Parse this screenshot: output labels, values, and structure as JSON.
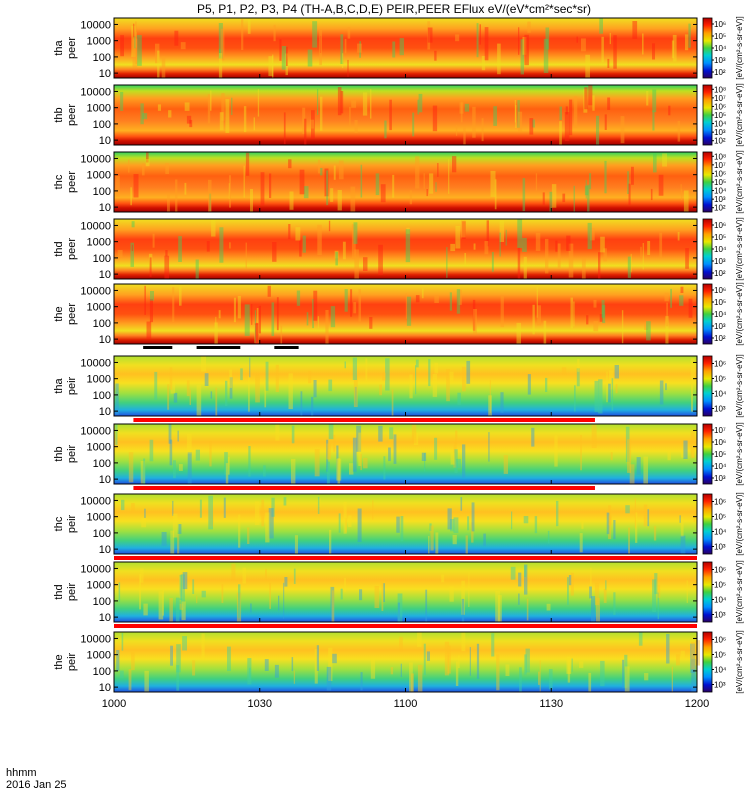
{
  "chart_data": {
    "type": "heatmap",
    "title": "P5, P1, P2, P3, P4 (TH-A,B,C,D,E) PEIR,PEER EFlux eV/(eV*cm²*sec*sr)",
    "time_axis": {
      "range": [
        "10:00",
        "12:00"
      ],
      "tick_labels": [
        "1000",
        "1030",
        "1100",
        "1130",
        "1200"
      ],
      "tick_minutes": [
        0,
        30,
        60,
        90,
        120
      ],
      "corner_label_top": "hhmm",
      "corner_label_bottom": "2016 Jan 25"
    },
    "y_ticks": [
      "10000",
      "1000",
      "100",
      "10"
    ],
    "y_tick_values": [
      10000,
      1000,
      100,
      10
    ],
    "y_range": [
      5,
      25000
    ],
    "y_scale": "log",
    "colorbar_label": "[eV/(cm²-s-sr-eV)]",
    "panels": [
      {
        "probe": "tha",
        "species": "peer",
        "cb_ticks": [
          "10⁶",
          "10⁵",
          "10⁴",
          "10³",
          "10²"
        ],
        "cb_exps": [
          6,
          5,
          4,
          3,
          2
        ],
        "cb_range": [
          1.5,
          6.5
        ],
        "gap_bar": "none"
      },
      {
        "probe": "thb",
        "species": "peer",
        "cb_ticks": [
          "10⁸",
          "10⁷",
          "10⁶",
          "10⁵",
          "10⁴",
          "10³",
          "10²"
        ],
        "cb_exps": [
          8,
          7,
          6,
          5,
          4,
          3,
          2
        ],
        "cb_range": [
          1.5,
          8.5
        ],
        "gap_bar": "none"
      },
      {
        "probe": "thc",
        "species": "peer",
        "cb_ticks": [
          "10⁸",
          "10⁷",
          "10⁶",
          "10⁵",
          "10⁴",
          "10³",
          "10²"
        ],
        "cb_exps": [
          8,
          7,
          6,
          5,
          4,
          3,
          2
        ],
        "cb_range": [
          1.5,
          8.5
        ],
        "gap_bar": "none"
      },
      {
        "probe": "thd",
        "species": "peer",
        "cb_ticks": [
          "10⁶",
          "10⁵",
          "10⁴",
          "10³",
          "10²"
        ],
        "cb_exps": [
          6,
          5,
          4,
          3,
          2
        ],
        "cb_range": [
          1.5,
          6.5
        ],
        "gap_bar": "none"
      },
      {
        "probe": "the",
        "species": "peer",
        "cb_ticks": [
          "10⁶",
          "10⁵",
          "10⁴",
          "10³",
          "10²"
        ],
        "cb_exps": [
          6,
          5,
          4,
          3,
          2
        ],
        "cb_range": [
          1.5,
          6.5
        ],
        "gap_bar": "segments"
      },
      {
        "probe": "tha",
        "species": "peir",
        "cb_ticks": [
          "10⁶",
          "10⁵",
          "10⁴",
          "10³"
        ],
        "cb_exps": [
          6,
          5,
          4,
          3
        ],
        "cb_range": [
          2.5,
          6.5
        ],
        "gap_bar": "red_partial"
      },
      {
        "probe": "thb",
        "species": "peir",
        "cb_ticks": [
          "10⁷",
          "10⁶",
          "10⁵",
          "10⁴",
          "10³"
        ],
        "cb_exps": [
          7,
          6,
          5,
          4,
          3
        ],
        "cb_range": [
          2.5,
          7.5
        ],
        "gap_bar": "red_partial"
      },
      {
        "probe": "thc",
        "species": "peir",
        "cb_ticks": [
          "10⁶",
          "10⁵",
          "10⁴",
          "10³"
        ],
        "cb_exps": [
          6,
          5,
          4,
          3
        ],
        "cb_range": [
          2.5,
          6.5
        ],
        "gap_bar": "red_full"
      },
      {
        "probe": "thd",
        "species": "peir",
        "cb_ticks": [
          "10⁶",
          "10⁵",
          "10⁴",
          "10³"
        ],
        "cb_exps": [
          6,
          5,
          4,
          3
        ],
        "cb_range": [
          2.5,
          6.5
        ],
        "gap_bar": "red_full"
      },
      {
        "probe": "the",
        "species": "peir",
        "cb_ticks": [
          "10⁶",
          "10⁵",
          "10⁴",
          "10³"
        ],
        "cb_exps": [
          6,
          5,
          4,
          3
        ],
        "cb_range": [
          2.5,
          6.5
        ],
        "gap_bar": "none"
      }
    ]
  }
}
